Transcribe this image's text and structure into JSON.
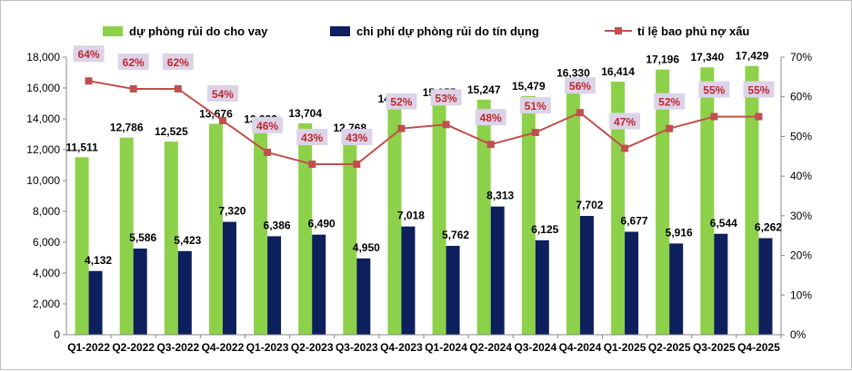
{
  "chart_data": {
    "type": "bar+line",
    "title": "",
    "categories": [
      "Q1-2022",
      "Q2-2022",
      "Q3-2022",
      "Q4-2022",
      "Q1-2023",
      "Q2-2023",
      "Q3-2023",
      "Q4-2023",
      "Q1-2024",
      "Q2-2024",
      "Q3-2024",
      "Q4-2024",
      "Q1-2025",
      "Q2-2025",
      "Q3-2025",
      "Q4-2025"
    ],
    "series": [
      {
        "name": "dự phòng rủi do cho vay",
        "type": "bar",
        "axis": "left",
        "color": "#8dd14a",
        "values": [
          11511,
          12786,
          12525,
          13676,
          13323,
          13704,
          12768,
          14649,
          15055,
          15247,
          15479,
          16330,
          16414,
          17196,
          17340,
          17429
        ],
        "labels": [
          "11,511",
          "12,786",
          "12,525",
          "13,676",
          "13,323",
          "13,704",
          "12,768",
          "14,649",
          "15,055",
          "15,247",
          "15,479",
          "16,330",
          "16,414",
          "17,196",
          "17,340",
          "17,429"
        ]
      },
      {
        "name": "chi phí dự phòng rủi do tín dụng",
        "type": "bar",
        "axis": "left",
        "color": "#0d1f5c",
        "values": [
          4132,
          5586,
          5423,
          7320,
          6386,
          6490,
          4950,
          7018,
          5762,
          8313,
          6125,
          7702,
          6677,
          5916,
          6544,
          6262
        ],
        "labels": [
          "4,132",
          "5,586",
          "5,423",
          "7,320",
          "6,386",
          "6,490",
          "4,950",
          "7,018",
          "5,762",
          "8,313",
          "6,125",
          "7,702",
          "6,677",
          "5,916",
          "6,544",
          "6,262"
        ]
      },
      {
        "name": "tỉ lệ bao phủ nợ xấu",
        "type": "line",
        "axis": "right",
        "color": "#c0504d",
        "values": [
          0.64,
          0.62,
          0.62,
          0.54,
          0.46,
          0.43,
          0.43,
          0.52,
          0.53,
          0.48,
          0.51,
          0.56,
          0.47,
          0.52,
          0.55,
          0.55
        ],
        "labels": [
          "64%",
          "62%",
          "62%",
          "54%",
          "46%",
          "43%",
          "43%",
          "52%",
          "53%",
          "48%",
          "51%",
          "56%",
          "47%",
          "52%",
          "55%",
          "55%"
        ]
      }
    ],
    "y_left": {
      "min": 0,
      "max": 18000,
      "step": 2000,
      "ticks": [
        "0",
        "2,000",
        "4,000",
        "6,000",
        "8,000",
        "10,000",
        "12,000",
        "14,000",
        "16,000",
        "18,000"
      ]
    },
    "y_right": {
      "min": 0,
      "max": 0.7,
      "step": 0.1,
      "ticks": [
        "0%",
        "10%",
        "20%",
        "30%",
        "40%",
        "50%",
        "60%",
        "70%"
      ]
    },
    "legend_position": "top",
    "grid": false,
    "label_box_color": "#dcd3e8"
  }
}
